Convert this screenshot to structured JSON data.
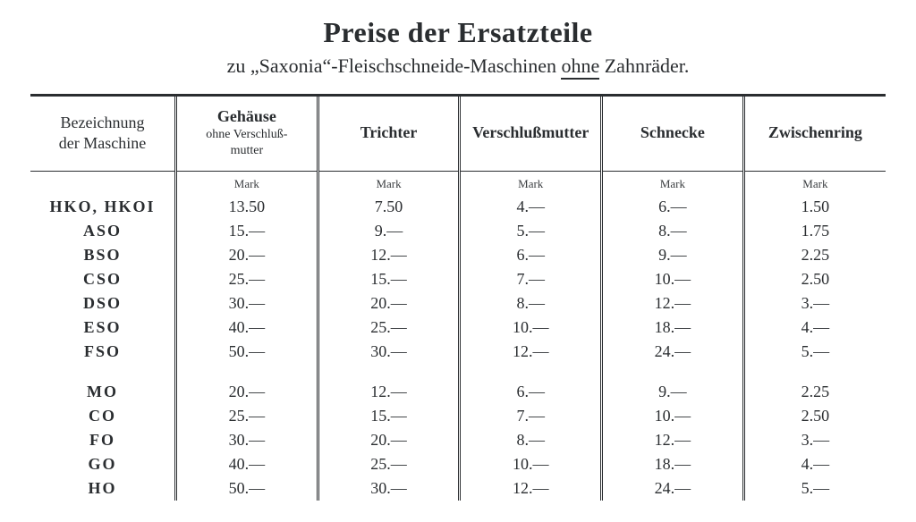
{
  "title": "Preise  der  Ersatzteile",
  "subtitle_pre": "zu  „Saxonia“-Fleischschneide-Maschinen ",
  "subtitle_underline": "ohne",
  "subtitle_post": " Zahnräder.",
  "columns": {
    "label_line1": "Bezeichnung",
    "label_line2": "der  Maschine",
    "c1_main": "Gehäuse",
    "c1_sub1": "ohne Verschluß-",
    "c1_sub2": "mutter",
    "c2": "Trichter",
    "c3": "Verschlußmutter",
    "c4": "Schnecke",
    "c5": "Zwischenring"
  },
  "currency_label": "Mark",
  "rows_a": [
    {
      "label": "HKO, HKOI",
      "v": [
        "13.50",
        "7.50",
        "4.—",
        "6.—",
        "1.50"
      ]
    },
    {
      "label": "ASO",
      "v": [
        "15.—",
        "9.—",
        "5.—",
        "8.—",
        "1.75"
      ]
    },
    {
      "label": "BSO",
      "v": [
        "20.—",
        "12.—",
        "6.—",
        "9.—",
        "2.25"
      ]
    },
    {
      "label": "CSO",
      "v": [
        "25.—",
        "15.—",
        "7.—",
        "10.—",
        "2.50"
      ]
    },
    {
      "label": "DSO",
      "v": [
        "30.—",
        "20.—",
        "8.—",
        "12.—",
        "3.—"
      ]
    },
    {
      "label": "ESO",
      "v": [
        "40.—",
        "25.—",
        "10.—",
        "18.—",
        "4.—"
      ]
    },
    {
      "label": "FSO",
      "v": [
        "50.—",
        "30.—",
        "12.—",
        "24.—",
        "5.—"
      ]
    }
  ],
  "rows_b": [
    {
      "label": "MO",
      "v": [
        "20.—",
        "12.—",
        "6.—",
        "9.—",
        "2.25"
      ]
    },
    {
      "label": "CO",
      "v": [
        "25.—",
        "15.—",
        "7.—",
        "10.—",
        "2.50"
      ]
    },
    {
      "label": "FO",
      "v": [
        "30.—",
        "20.—",
        "8.—",
        "12.—",
        "3.—"
      ]
    },
    {
      "label": "GO",
      "v": [
        "40.—",
        "25.—",
        "10.—",
        "18.—",
        "4.—"
      ]
    },
    {
      "label": "HO",
      "v": [
        "50.—",
        "30.—",
        "12.—",
        "24.—",
        "5.—"
      ]
    }
  ],
  "colors": {
    "text": "#2a2d30",
    "background": "#ffffff"
  }
}
